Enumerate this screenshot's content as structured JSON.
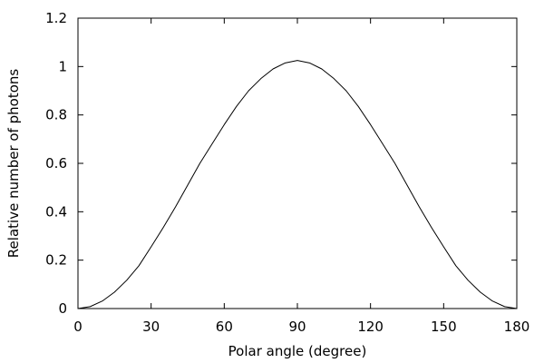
{
  "chart_data": {
    "type": "line",
    "title": "",
    "xlabel": "Polar angle (degree)",
    "ylabel": "Relative number of photons",
    "xlim": [
      0,
      180
    ],
    "ylim": [
      0,
      1.2
    ],
    "xticks": [
      0,
      30,
      60,
      90,
      120,
      150,
      180
    ],
    "xtick_labels": [
      "0",
      "30",
      "60",
      "90",
      "120",
      "150",
      "180"
    ],
    "yticks": [
      0,
      0.2,
      0.4,
      0.6,
      0.8,
      1.0,
      1.2
    ],
    "ytick_labels": [
      "0",
      "0.2",
      "0.4",
      "0.6",
      "0.8",
      "1",
      "1.2"
    ],
    "grid": false,
    "legend": "none",
    "series": [
      {
        "color": "#000000",
        "x": [
          0,
          5,
          10,
          15,
          20,
          25,
          30,
          35,
          40,
          45,
          50,
          55,
          60,
          65,
          70,
          75,
          80,
          85,
          90,
          95,
          100,
          105,
          110,
          115,
          120,
          125,
          130,
          135,
          140,
          145,
          150,
          155,
          160,
          165,
          170,
          175,
          180
        ],
        "y": [
          0,
          0.008,
          0.031,
          0.068,
          0.117,
          0.177,
          0.255,
          0.335,
          0.42,
          0.51,
          0.6,
          0.68,
          0.76,
          0.835,
          0.9,
          0.95,
          0.99,
          1.015,
          1.025,
          1.015,
          0.99,
          0.95,
          0.9,
          0.835,
          0.76,
          0.68,
          0.6,
          0.51,
          0.42,
          0.335,
          0.255,
          0.177,
          0.117,
          0.068,
          0.031,
          0.008,
          0
        ]
      }
    ]
  }
}
